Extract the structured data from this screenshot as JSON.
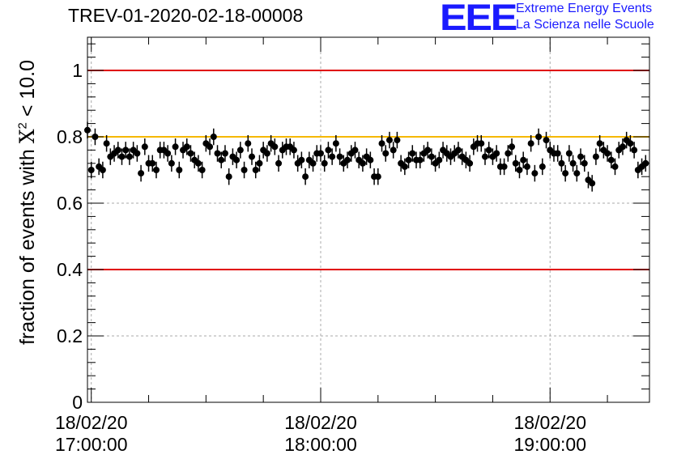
{
  "title": "TREV-01-2020-02-18-00008",
  "logo": {
    "mark": "EEE",
    "line1": "Extreme Energy Events",
    "line2": "La Scienza nelle Scuole",
    "color": "#1a1aff"
  },
  "chart_data": {
    "type": "scatter",
    "title": "TREV-01-2020-02-18-00008",
    "ylabel_prefix": "fraction of events with ",
    "ylabel_symbol": "X",
    "ylabel_sup": "2",
    "ylabel_suffix": " < 10.0",
    "xlabel": "",
    "ylim": [
      0,
      1.1
    ],
    "yticks": [
      0,
      0.2,
      0.4,
      0.6,
      0.8,
      1
    ],
    "ytick_labels": [
      "0",
      "0.2",
      "0.4",
      "0.6",
      "0.8",
      "1"
    ],
    "x_unit": "minutes after 18/02/20 17:00:00",
    "xlim": [
      -1,
      146
    ],
    "xticks_major": [
      0,
      60,
      120
    ],
    "xtick_labels": [
      {
        "date": "18/02/20",
        "time": "17:00:00"
      },
      {
        "date": "18/02/20",
        "time": "18:00:00"
      },
      {
        "date": "18/02/20",
        "time": "19:00:00"
      }
    ],
    "grid": true,
    "hlines": [
      {
        "y": 1.0,
        "color": "#e00000"
      },
      {
        "y": 0.4,
        "color": "#e00000"
      },
      {
        "y": 0.8,
        "color": "#f5b800"
      }
    ],
    "colors": {
      "points": "#000000",
      "grid": "#aaaaaa",
      "axes": "#000000"
    },
    "series": [
      {
        "x": [
          -1,
          0,
          1,
          2,
          3,
          4,
          5,
          6,
          7,
          8,
          9,
          10,
          11,
          12,
          13,
          14,
          15,
          16,
          17,
          18,
          19,
          20,
          21,
          22,
          23,
          24,
          25,
          26,
          27,
          28,
          29,
          30,
          31,
          32,
          33,
          34,
          35,
          36,
          37,
          38,
          39,
          40,
          41,
          42,
          43,
          44,
          45,
          46,
          47,
          48,
          49,
          50,
          51,
          52,
          53,
          54,
          55,
          56,
          57,
          58,
          59,
          60,
          61,
          62,
          63,
          64,
          65,
          66,
          67,
          68,
          69,
          70,
          71,
          72,
          73,
          74,
          75,
          76,
          77,
          78,
          79,
          80,
          81,
          82,
          83,
          84,
          85,
          86,
          87,
          88,
          89,
          90,
          91,
          92,
          93,
          94,
          95,
          96,
          97,
          98,
          99,
          100,
          101,
          102,
          103,
          104,
          105,
          106,
          107,
          108,
          109,
          110,
          111,
          112,
          113,
          114,
          115,
          116,
          117,
          118,
          119,
          120,
          121,
          122,
          123,
          124,
          125,
          126,
          127,
          128,
          129,
          130,
          131,
          132,
          133,
          134,
          135,
          136,
          137,
          138,
          139,
          140,
          141,
          142,
          143,
          144,
          145
        ],
        "y": [
          0.82,
          0.7,
          0.8,
          0.71,
          0.7,
          0.78,
          0.74,
          0.75,
          0.76,
          0.74,
          0.76,
          0.74,
          0.76,
          0.75,
          0.69,
          0.77,
          0.72,
          0.72,
          0.7,
          0.76,
          0.76,
          0.75,
          0.72,
          0.77,
          0.7,
          0.76,
          0.77,
          0.75,
          0.73,
          0.72,
          0.7,
          0.78,
          0.77,
          0.8,
          0.75,
          0.73,
          0.75,
          0.68,
          0.74,
          0.73,
          0.76,
          0.7,
          0.78,
          0.74,
          0.7,
          0.72,
          0.76,
          0.75,
          0.78,
          0.77,
          0.72,
          0.76,
          0.77,
          0.77,
          0.76,
          0.72,
          0.73,
          0.68,
          0.73,
          0.72,
          0.75,
          0.75,
          0.72,
          0.76,
          0.74,
          0.78,
          0.74,
          0.72,
          0.73,
          0.75,
          0.76,
          0.73,
          0.72,
          0.74,
          0.73,
          0.68,
          0.68,
          0.78,
          0.75,
          0.79,
          0.76,
          0.79,
          0.72,
          0.71,
          0.73,
          0.75,
          0.73,
          0.73,
          0.75,
          0.76,
          0.74,
          0.72,
          0.73,
          0.76,
          0.75,
          0.74,
          0.75,
          0.76,
          0.74,
          0.73,
          0.72,
          0.77,
          0.78,
          0.78,
          0.74,
          0.76,
          0.74,
          0.75,
          0.71,
          0.71,
          0.75,
          0.77,
          0.72,
          0.7,
          0.73,
          0.71,
          0.78,
          0.69,
          0.8,
          0.71,
          0.79,
          0.76,
          0.75,
          0.75,
          0.72,
          0.69,
          0.75,
          0.72,
          0.69,
          0.74,
          0.72,
          0.67,
          0.66,
          0.74,
          0.78,
          0.76,
          0.75,
          0.73,
          0.71,
          0.76,
          0.77,
          0.79,
          0.78,
          0.76,
          0.7,
          0.71,
          0.72
        ],
        "err": 0.025
      }
    ]
  }
}
